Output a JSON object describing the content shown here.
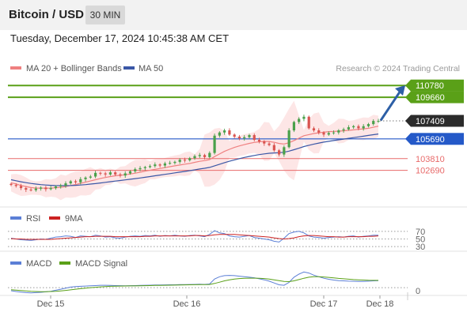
{
  "header": {
    "title": "Bitcoin / USD",
    "timeframe": "30 MIN",
    "datetime": "Tuesday, December 17, 2024 10:45:38 AM CET"
  },
  "colors": {
    "resistance": "#5aa018",
    "pivot": "#2459c8",
    "support": "#e86a6a",
    "last_price": "#2b2b2b",
    "ma20": "#ef8080",
    "ma50": "#3a57a6",
    "bull_candle": "#49a04a",
    "bear_candle": "#d9534f",
    "band_fill": "#fde2e2",
    "arrow": "#2d5fa6",
    "rsi": "#5b7fd6",
    "rsi_ma": "#cc2222",
    "macd": "#5b7fd6",
    "macd_signal": "#5aa018"
  },
  "chart_data": [
    {
      "type": "candlestick",
      "legend": [
        {
          "name": "MA 20 + Bollinger Bands",
          "color": "#ef8080"
        },
        {
          "name": "MA 50",
          "color": "#3a57a6"
        }
      ],
      "watermark": "Research © 2024 Trading Central",
      "x_ticks": [
        "Dec 15",
        "Dec 16",
        "Dec 17",
        "Dec 18"
      ],
      "ylim": [
        99500,
        111700
      ],
      "levels": [
        {
          "value": 110780,
          "label": "110780",
          "kind": "resistance"
        },
        {
          "value": 109660,
          "label": "109660",
          "kind": "resistance"
        },
        {
          "value": 107409,
          "label": "107409",
          "kind": "last"
        },
        {
          "value": 105690,
          "label": "105690",
          "kind": "pivot"
        },
        {
          "value": 103810,
          "label": "103810",
          "kind": "support"
        },
        {
          "value": 102690,
          "label": "102690",
          "kind": "support"
        }
      ],
      "forecast_arrow": {
        "from": 107450,
        "to": 110800
      },
      "closes": [
        101300,
        101200,
        101000,
        100850,
        100800,
        100950,
        101050,
        100900,
        101000,
        101150,
        101250,
        101450,
        101650,
        101550,
        101850,
        102000,
        102100,
        102450,
        102400,
        102300,
        102500,
        102300,
        102200,
        102400,
        102600,
        102800,
        102900,
        103000,
        103100,
        103250,
        103150,
        103350,
        103400,
        103500,
        103700,
        103650,
        103850,
        104050,
        104150,
        103950,
        104350,
        106000,
        106300,
        106500,
        106100,
        105900,
        105750,
        105850,
        106050,
        105600,
        105450,
        105250,
        105100,
        104600,
        104200,
        104900,
        106500,
        107300,
        107600,
        107800,
        106700,
        106500,
        106300,
        106100,
        106250,
        106300,
        106500,
        106600,
        106800,
        106900,
        106700,
        106900,
        107100,
        107400,
        107409
      ],
      "ma20": [
        101500,
        101400,
        101250,
        101150,
        101050,
        101000,
        101000,
        100990,
        101000,
        101030,
        101070,
        101150,
        101250,
        101340,
        101450,
        101560,
        101680,
        101800,
        101920,
        102010,
        102100,
        102170,
        102220,
        102270,
        102340,
        102420,
        102510,
        102610,
        102700,
        102790,
        102870,
        102960,
        103040,
        103120,
        103200,
        103280,
        103350,
        103450,
        103550,
        103620,
        103720,
        104000,
        104250,
        104500,
        104700,
        104880,
        105020,
        105140,
        105260,
        105350,
        105410,
        105450,
        105440,
        105370,
        105250,
        105200,
        105320,
        105530,
        105760,
        105990,
        106100,
        106200,
        106270,
        106330,
        106380,
        106400,
        106430,
        106460,
        106500,
        106550,
        106600,
        106650,
        106700,
        106800,
        106900
      ],
      "ma50": [
        101800,
        101700,
        101600,
        101520,
        101440,
        101380,
        101330,
        101290,
        101260,
        101240,
        101230,
        101230,
        101240,
        101260,
        101290,
        101330,
        101380,
        101430,
        101490,
        101550,
        101610,
        101670,
        101720,
        101780,
        101840,
        101900,
        101960,
        102030,
        102100,
        102170,
        102240,
        102310,
        102380,
        102450,
        102520,
        102590,
        102660,
        102740,
        102820,
        102890,
        102970,
        103120,
        103270,
        103420,
        103560,
        103690,
        103810,
        103920,
        104020,
        104110,
        104190,
        104260,
        104320,
        104350,
        104370,
        104420,
        104520,
        104660,
        104800,
        104960,
        105080,
        105190,
        105290,
        105380,
        105460,
        105530,
        105600,
        105670,
        105740,
        105810,
        105880,
        105950,
        106020,
        106090,
        106160
      ]
    },
    {
      "type": "line",
      "legend": [
        {
          "name": "RSI",
          "color": "#5b7fd6"
        },
        {
          "name": "9MA",
          "color": "#cc2222"
        }
      ],
      "ylim": [
        20,
        80
      ],
      "levels": [
        {
          "value": 70,
          "label": "70"
        },
        {
          "value": 50,
          "label": "50"
        },
        {
          "value": 30,
          "label": "30"
        }
      ],
      "rsi": [
        52,
        50,
        48,
        47,
        46,
        48,
        50,
        49,
        52,
        55,
        56,
        58,
        57,
        54,
        58,
        57,
        56,
        60,
        58,
        55,
        56,
        53,
        52,
        55,
        57,
        58,
        57,
        59,
        58,
        60,
        57,
        59,
        58,
        60,
        58,
        57,
        59,
        60,
        58,
        56,
        62,
        72,
        66,
        64,
        58,
        56,
        55,
        57,
        59,
        54,
        52,
        50,
        48,
        44,
        42,
        52,
        64,
        68,
        70,
        66,
        58,
        55,
        54,
        52,
        54,
        55,
        56,
        55,
        57,
        58,
        55,
        57,
        58,
        60,
        60
      ],
      "ma9": [
        51,
        50,
        50,
        49,
        49,
        49,
        49,
        49,
        49,
        50,
        51,
        52,
        53,
        54,
        55,
        56,
        56,
        57,
        57,
        57,
        57,
        56,
        56,
        56,
        56,
        56,
        56,
        57,
        57,
        58,
        58,
        58,
        58,
        58,
        58,
        58,
        58,
        59,
        59,
        58,
        59,
        61,
        62,
        62,
        62,
        62,
        61,
        60,
        59,
        58,
        57,
        56,
        55,
        53,
        51,
        50,
        51,
        53,
        56,
        58,
        59,
        59,
        58,
        57,
        56,
        56,
        55,
        55,
        56,
        56,
        56,
        56,
        57,
        57,
        58
      ]
    },
    {
      "type": "line",
      "legend": [
        {
          "name": "MACD",
          "color": "#5b7fd6"
        },
        {
          "name": "MACD Signal",
          "color": "#5aa018"
        }
      ],
      "zero_label": "0",
      "macd": [
        -120,
        -150,
        -170,
        -190,
        -200,
        -190,
        -180,
        -160,
        -140,
        -100,
        -60,
        -20,
        20,
        40,
        50,
        60,
        70,
        80,
        90,
        90,
        85,
        80,
        75,
        70,
        75,
        80,
        85,
        90,
        95,
        100,
        100,
        105,
        110,
        110,
        115,
        115,
        120,
        125,
        130,
        125,
        140,
        330,
        420,
        460,
        470,
        460,
        440,
        420,
        400,
        380,
        340,
        300,
        250,
        180,
        110,
        90,
        200,
        400,
        520,
        600,
        560,
        480,
        420,
        360,
        320,
        290,
        270,
        260,
        250,
        245,
        240,
        240,
        250,
        260,
        270
      ],
      "signal": [
        -80,
        -95,
        -110,
        -125,
        -140,
        -150,
        -155,
        -155,
        -150,
        -140,
        -125,
        -105,
        -85,
        -60,
        -40,
        -20,
        0,
        15,
        30,
        40,
        50,
        55,
        60,
        62,
        65,
        68,
        72,
        75,
        80,
        85,
        88,
        92,
        95,
        98,
        102,
        105,
        108,
        112,
        115,
        118,
        122,
        160,
        210,
        260,
        300,
        330,
        350,
        360,
        365,
        365,
        360,
        350,
        330,
        300,
        270,
        240,
        230,
        260,
        310,
        360,
        400,
        420,
        420,
        410,
        395,
        375,
        355,
        340,
        325,
        310,
        300,
        290,
        283,
        280,
        278
      ]
    }
  ]
}
